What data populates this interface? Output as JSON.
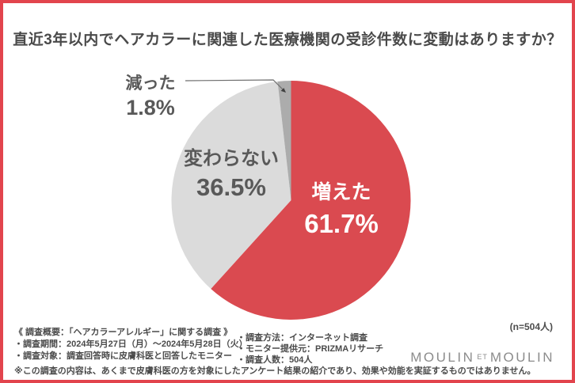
{
  "title": "直近3年以内でヘアカラーに関連した医療機関の受診件数に変動はありますか？",
  "chart_data": {
    "type": "pie",
    "title": "直近3年以内でヘアカラーに関連した医療機関の受診件数に変動はありますか？",
    "start_angle_deg": 0,
    "direction": "clockwise",
    "sample_size_label": "(n=504人)",
    "slices": [
      {
        "label": "増えた",
        "value_pct": 61.7,
        "display": "61.7%",
        "color": "#DA4A50",
        "label_color": "#FFFFFF"
      },
      {
        "label": "変わらない",
        "value_pct": 36.5,
        "display": "36.5%",
        "color": "#DBDBDB",
        "label_color": "#595959"
      },
      {
        "label": "減った",
        "value_pct": 1.8,
        "display": "1.8%",
        "color": "#ACACAC",
        "label_color": "#595959",
        "callout": true
      }
    ],
    "colors": {
      "accent_red": "#DA4A50",
      "light_gray": "#DBDBDB",
      "dark_gray": "#ACACAC",
      "frame_border": "#E2444D"
    }
  },
  "survey": {
    "heading": "《 調査概要：「ヘアカラーアレルギー」に関する調査 》",
    "left_items": [
      "・調査期間：2024年5月27日（月）～2024年5月28日（火）",
      "・調査対象：調査回答時に皮膚科医と回答したモニター"
    ],
    "right_items": [
      "・調査方法：インターネット調査",
      "・モニター提供元：PRIZMAリサーチ",
      "・調査人数：504人"
    ],
    "note": "※この調査の内容は、あくまで皮膚科医の方を対象にしたアンケート結果の紹介であり、効果や効能を実証するものではありません。",
    "sample_size": "(n=504人)"
  },
  "logo": {
    "part1": "MOULIN",
    "middle": "ET",
    "part2": "MOULIN"
  }
}
